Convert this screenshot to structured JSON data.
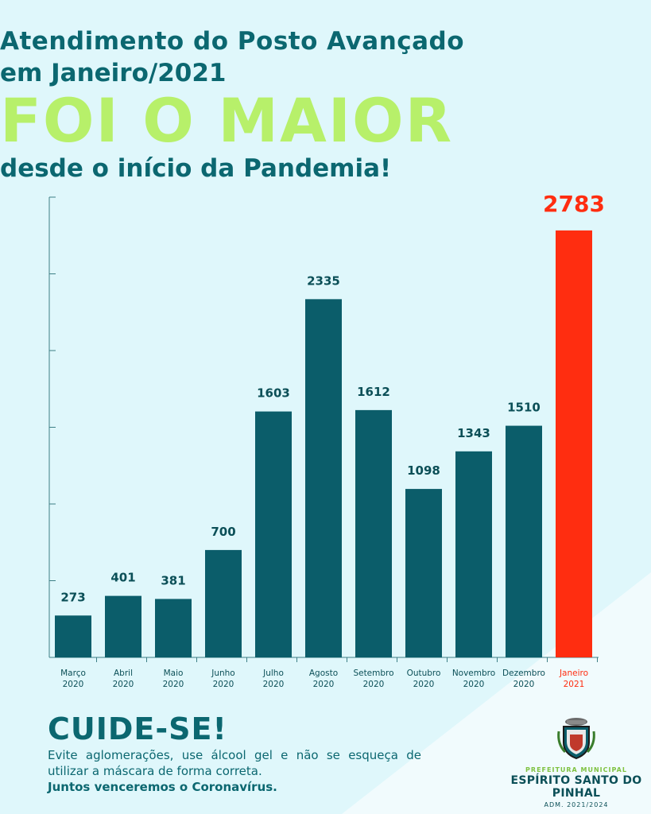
{
  "header": {
    "line1": "Atendimento do Posto Avançado",
    "line2": "em Janeiro/2021",
    "headline": "FOI O MAIOR",
    "line3": "desde o início da Pandemia!"
  },
  "chart_data": {
    "type": "bar",
    "title": "",
    "xlabel": "",
    "ylabel": "",
    "ylim": [
      0,
      3000
    ],
    "grid": false,
    "categories": [
      [
        "Março",
        "2020"
      ],
      [
        "Abril",
        "2020"
      ],
      [
        "Maio",
        "2020"
      ],
      [
        "Junho",
        "2020"
      ],
      [
        "Julho",
        "2020"
      ],
      [
        "Agosto",
        "2020"
      ],
      [
        "Setembro",
        "2020"
      ],
      [
        "Outubro",
        "2020"
      ],
      [
        "Novembro",
        "2020"
      ],
      [
        "Dezembro",
        "2020"
      ],
      [
        "Janeiro",
        "2021"
      ]
    ],
    "values": [
      273,
      401,
      381,
      700,
      1603,
      2335,
      1612,
      1098,
      1343,
      1510,
      2783
    ],
    "highlight_index": 10,
    "colors": {
      "bar": "#0b5d6a",
      "highlight": "#ff2d10",
      "axis": "#3d7f86"
    }
  },
  "footer": {
    "title": "CUIDE-SE!",
    "text": "Evite aglomerações, use álcool gel e não se esqueça de utilizar a máscara de forma correta.",
    "strong": "Juntos venceremos o Coronavírus."
  },
  "logo": {
    "line1": "PREFEITURA MUNICIPAL",
    "line2": "ESPÍRITO SANTO DO PINHAL",
    "line3": "ADM. 2021/2024"
  },
  "colors": {
    "background": "#dff7fb",
    "background_accent": "#f1fbfd",
    "title": "#0b6770",
    "headline": "#b7f06a"
  }
}
